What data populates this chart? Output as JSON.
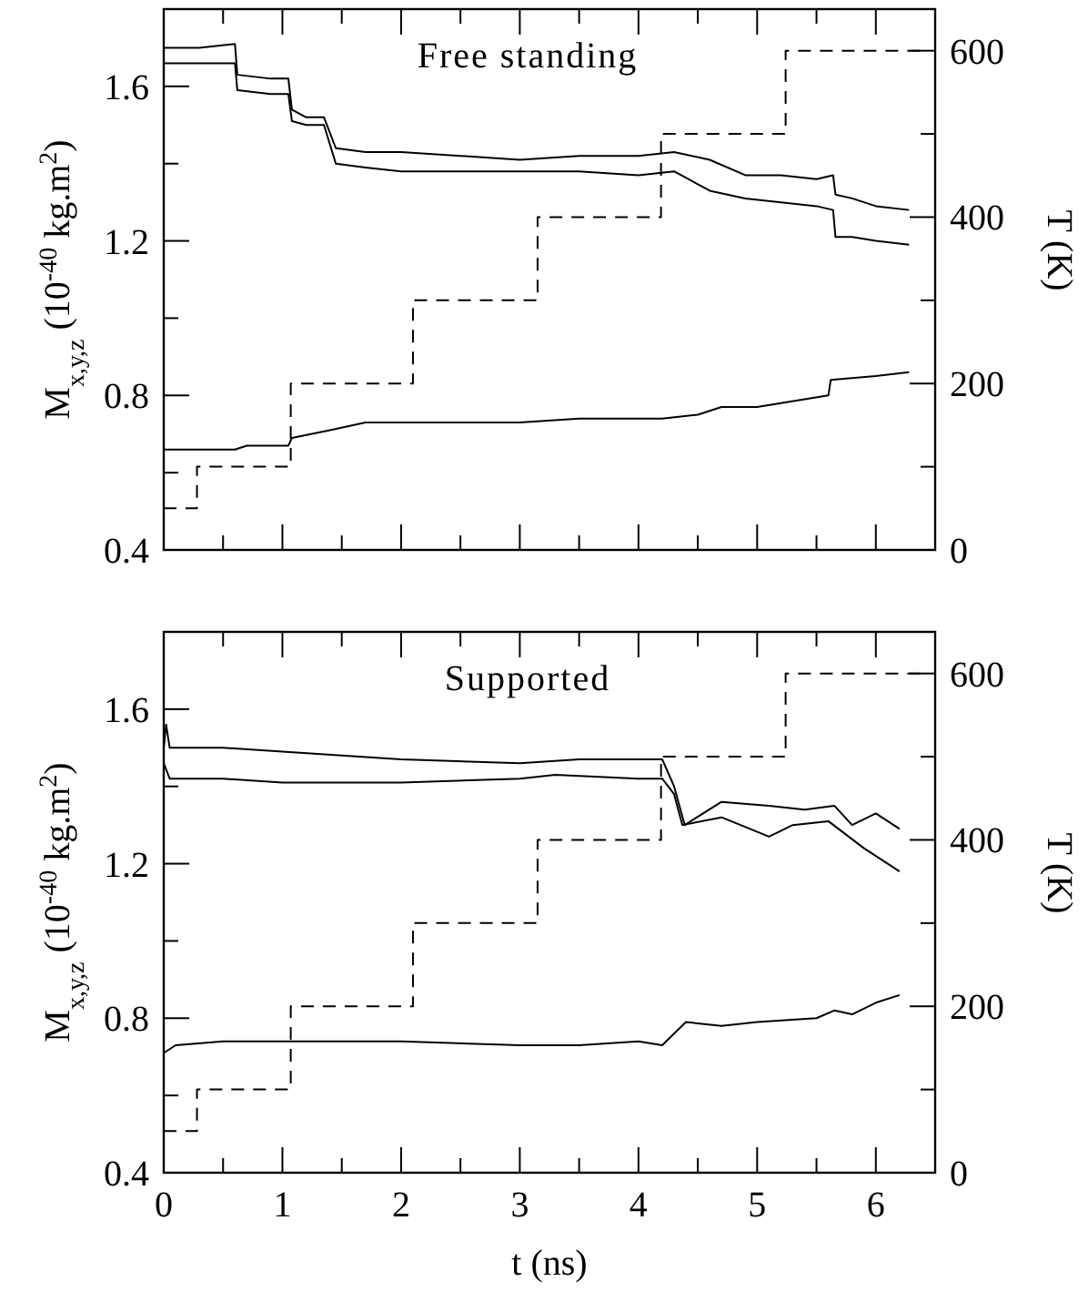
{
  "chart_data": [
    {
      "type": "line",
      "title": "Free standing",
      "ylabel": "M$_{x,y,z}$ (10$^{-40}$ kg.m$^{2}$)",
      "y2label": "T (K)",
      "tick_labels": "y",
      "xlim": [
        0,
        6.5
      ],
      "xticks": [
        0,
        {
          "value": 0.5,
          "label": null
        },
        {
          "value": 1,
          "label": null
        },
        {
          "value": 1.5,
          "label": null
        },
        {
          "value": 2,
          "label": null
        },
        {
          "value": 2.5,
          "label": null
        },
        {
          "value": 3,
          "label": null
        },
        {
          "value": 3.5,
          "label": null
        },
        {
          "value": 4,
          "label": null
        },
        {
          "value": 4.5,
          "label": null
        },
        {
          "value": 5,
          "label": null
        },
        {
          "value": 5.5,
          "label": null
        },
        {
          "value": 6,
          "label": null
        }
      ],
      "ylim": [
        0.4,
        1.8
      ],
      "yticks": [
        0.4,
        {
          "value": 0.6,
          "label": null
        },
        0.8,
        {
          "value": 1.0,
          "label": null
        },
        1.2,
        {
          "value": 1.4,
          "label": null
        },
        1.6
      ],
      "y2lim": [
        0,
        650
      ],
      "y2ticks": [
        0,
        {
          "value": 100,
          "label": null
        },
        200,
        {
          "value": 300,
          "label": null
        },
        400,
        {
          "value": 500,
          "label": null
        },
        600
      ],
      "series": [
        {
          "color": "#000000",
          "x": [
            0,
            0.3,
            0.6,
            0.62,
            0.9,
            1.05,
            1.08,
            1.2,
            1.35,
            1.45,
            1.7,
            2,
            2.5,
            3,
            3.5,
            4,
            4.3,
            4.6,
            4.9,
            5.2,
            5.5,
            5.64,
            5.66,
            5.8,
            6,
            6.28
          ],
          "values": [
            1.7,
            1.7,
            1.71,
            1.63,
            1.62,
            1.62,
            1.54,
            1.52,
            1.52,
            1.44,
            1.43,
            1.43,
            1.42,
            1.41,
            1.42,
            1.42,
            1.43,
            1.41,
            1.37,
            1.37,
            1.36,
            1.37,
            1.32,
            1.31,
            1.29,
            1.28
          ]
        },
        {
          "color": "#000000",
          "x": [
            0,
            0.3,
            0.6,
            0.62,
            0.9,
            1.05,
            1.08,
            1.2,
            1.35,
            1.45,
            1.7,
            2,
            2.5,
            3,
            3.5,
            4,
            4.3,
            4.6,
            4.9,
            5.2,
            5.5,
            5.64,
            5.66,
            5.8,
            6,
            6.28
          ],
          "values": [
            1.66,
            1.66,
            1.66,
            1.59,
            1.58,
            1.58,
            1.51,
            1.5,
            1.5,
            1.4,
            1.39,
            1.38,
            1.38,
            1.38,
            1.38,
            1.37,
            1.38,
            1.33,
            1.31,
            1.3,
            1.29,
            1.28,
            1.21,
            1.21,
            1.2,
            1.19
          ]
        },
        {
          "color": "#000000",
          "x": [
            0,
            0.3,
            0.6,
            0.7,
            1.05,
            1.08,
            1.4,
            1.7,
            2,
            2.5,
            3,
            3.5,
            4,
            4.2,
            4.5,
            4.7,
            5,
            5.4,
            5.6,
            5.62,
            6,
            6.28
          ],
          "values": [
            0.66,
            0.66,
            0.66,
            0.67,
            0.67,
            0.69,
            0.71,
            0.73,
            0.73,
            0.73,
            0.73,
            0.74,
            0.74,
            0.74,
            0.75,
            0.77,
            0.77,
            0.79,
            0.8,
            0.84,
            0.85,
            0.86
          ]
        },
        {
          "type": "step",
          "axis": "y2",
          "line_style": "dashed",
          "color": "#000000",
          "x": [
            0,
            0.28,
            1.07,
            2.1,
            3.15,
            4.19,
            5.24,
            6.45
          ],
          "values": [
            50,
            100,
            200,
            300,
            400,
            500,
            600,
            600
          ]
        }
      ]
    },
    {
      "type": "line",
      "title": "Supported",
      "xlabel": "t (ns)",
      "ylabel": "M$_{x,y,z}$ (10$^{-40}$ kg.m$^{2}$)",
      "y2label": "T (K)",
      "xlim": [
        0,
        6.5
      ],
      "xticks": [
        0,
        {
          "value": 0.5,
          "label": null
        },
        1,
        {
          "value": 1.5,
          "label": null
        },
        2,
        {
          "value": 2.5,
          "label": null
        },
        3,
        {
          "value": 3.5,
          "label": null
        },
        4,
        {
          "value": 4.5,
          "label": null
        },
        5,
        {
          "value": 5.5,
          "label": null
        },
        6
      ],
      "ylim": [
        0.4,
        1.8
      ],
      "yticks": [
        0.4,
        {
          "value": 0.6,
          "label": null
        },
        0.8,
        {
          "value": 1.0,
          "label": null
        },
        1.2,
        {
          "value": 1.4,
          "label": null
        },
        1.6
      ],
      "y2lim": [
        0,
        650
      ],
      "y2ticks": [
        0,
        {
          "value": 100,
          "label": null
        },
        200,
        {
          "value": 300,
          "label": null
        },
        400,
        {
          "value": 500,
          "label": null
        },
        600
      ],
      "series": [
        {
          "color": "#000000",
          "x": [
            0,
            0.02,
            0.05,
            0.5,
            1,
            2,
            3,
            3.5,
            4,
            4.2,
            4.3,
            4.39,
            4.7,
            5.1,
            5.4,
            5.65,
            5.8,
            6,
            6.2
          ],
          "values": [
            1.5,
            1.56,
            1.5,
            1.5,
            1.49,
            1.47,
            1.46,
            1.47,
            1.47,
            1.47,
            1.4,
            1.3,
            1.36,
            1.35,
            1.34,
            1.35,
            1.3,
            1.33,
            1.29
          ]
        },
        {
          "color": "#000000",
          "x": [
            0,
            0.05,
            0.5,
            1,
            2,
            3,
            3.3,
            4,
            4.2,
            4.3,
            4.37,
            4.7,
            5.1,
            5.3,
            5.6,
            5.9,
            6.2
          ],
          "values": [
            1.46,
            1.42,
            1.42,
            1.41,
            1.41,
            1.42,
            1.43,
            1.42,
            1.42,
            1.38,
            1.3,
            1.32,
            1.27,
            1.3,
            1.31,
            1.24,
            1.18
          ]
        },
        {
          "color": "#000000",
          "x": [
            0,
            0.1,
            0.5,
            1,
            2,
            3,
            3.5,
            4,
            4.2,
            4.4,
            4.7,
            5,
            5.5,
            5.65,
            5.8,
            6,
            6.2
          ],
          "values": [
            0.71,
            0.73,
            0.74,
            0.74,
            0.74,
            0.73,
            0.73,
            0.74,
            0.73,
            0.79,
            0.78,
            0.79,
            0.8,
            0.82,
            0.81,
            0.84,
            0.86
          ]
        },
        {
          "type": "step",
          "axis": "y2",
          "line_style": "dashed",
          "color": "#000000",
          "x": [
            0,
            0.28,
            1.07,
            2.1,
            3.15,
            4.19,
            5.24,
            6.45
          ],
          "values": [
            50,
            100,
            200,
            300,
            400,
            500,
            600,
            600
          ]
        }
      ]
    }
  ]
}
